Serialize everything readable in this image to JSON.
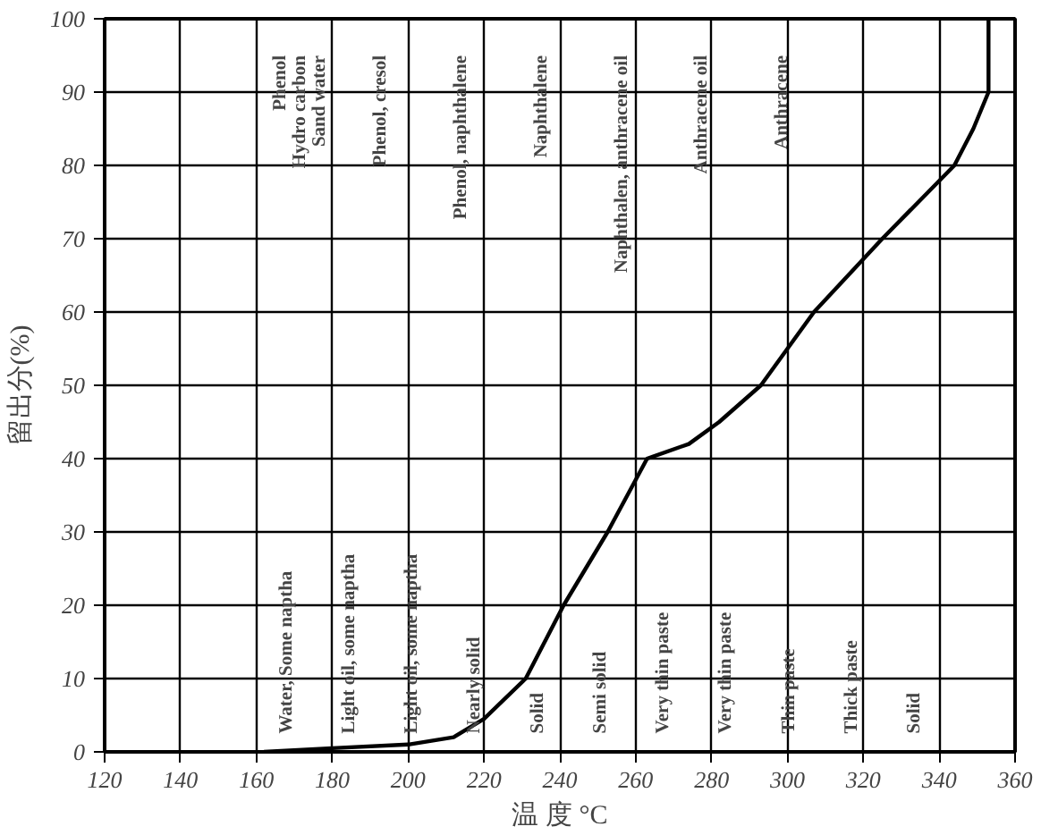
{
  "chart_data": {
    "type": "line",
    "xlabel": "温 度 °C",
    "ylabel": "留出分(%)",
    "x": [
      162,
      180,
      200,
      212,
      220,
      231,
      241,
      252.6,
      263,
      274,
      282,
      293,
      307,
      325,
      344,
      349,
      353,
      353
    ],
    "series": [
      {
        "color": "#000000",
        "values": [
          0,
          0.5,
          1,
          2,
          4.5,
          10,
          20,
          30,
          40,
          42,
          45,
          50,
          60,
          70,
          80,
          85,
          90,
          100
        ]
      }
    ],
    "xlim": [
      120,
      360
    ],
    "ylim": [
      0,
      100
    ],
    "xticks": [
      120,
      140,
      160,
      180,
      200,
      220,
      240,
      260,
      280,
      300,
      320,
      340,
      360
    ],
    "yticks": [
      0,
      10,
      20,
      30,
      40,
      50,
      60,
      70,
      80,
      90,
      100
    ],
    "grid": true,
    "marker": "none",
    "line_style": "solid",
    "annotations": [
      "Phenol\nHydro carbon\nSand water",
      "Phenol, cresol",
      "Phenol, naphthalene",
      "Naphthalene",
      "Naphthalen, anthracene oil",
      "Anthracene oil",
      "Anthracene",
      "Water, Some naptha",
      "Light oil, some naptha",
      "Light oil, some naptha",
      "Nearly solid",
      "Solid",
      "Semi solid",
      "Very thin paste",
      "Very thin paste",
      "Thin paste",
      "Thick paste",
      "Solid"
    ]
  }
}
